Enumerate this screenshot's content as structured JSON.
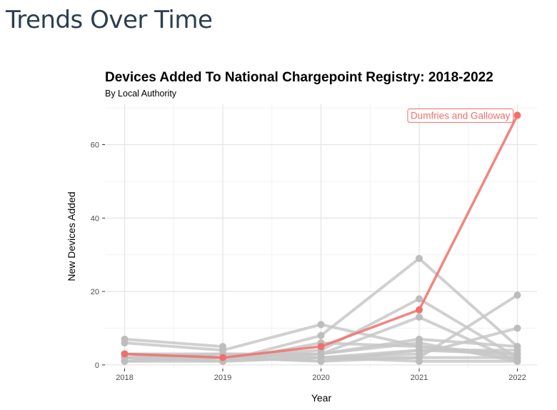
{
  "page": {
    "heading": "Trends Over Time"
  },
  "colors": {
    "highlight": "#f0706a",
    "background_series": "#c8c8c8",
    "background_points": "#bdbdbd"
  },
  "chart_data": {
    "type": "line",
    "title": "Devices Added To National Chargepoint Registry: 2018-2022",
    "subtitle": "By Local Authority",
    "xlabel": "Year",
    "ylabel": "New Devices Added",
    "x": [
      2018,
      2019,
      2020,
      2021,
      2022
    ],
    "xlim": [
      2017.8,
      2022.2
    ],
    "ylim": [
      -1,
      71
    ],
    "xticks": [
      2018,
      2019,
      2020,
      2021,
      2022
    ],
    "yticks": [
      0,
      20,
      40,
      60
    ],
    "grid": true,
    "highlight": {
      "name": "Dumfries and Galloway",
      "values": [
        3,
        2,
        5,
        15,
        68
      ]
    },
    "series": [
      {
        "values": [
          7,
          5,
          null,
          null,
          null
        ]
      },
      {
        "values": [
          6,
          4,
          11,
          5,
          3
        ]
      },
      {
        "values": [
          2,
          1,
          8,
          29,
          5
        ]
      },
      {
        "values": [
          3,
          2,
          4,
          18,
          2
        ]
      },
      {
        "values": [
          2,
          2,
          3,
          13,
          1
        ]
      },
      {
        "values": [
          2,
          1,
          2,
          2,
          19
        ]
      },
      {
        "values": [
          1,
          2,
          2,
          3,
          10
        ]
      },
      {
        "values": [
          3,
          3,
          3,
          7,
          5
        ]
      },
      {
        "values": [
          2,
          2,
          1,
          4,
          3
        ]
      },
      {
        "values": [
          1,
          1,
          6,
          5,
          2
        ]
      },
      {
        "values": [
          2,
          3,
          2,
          1,
          1
        ]
      },
      {
        "values": [
          1,
          2,
          3,
          6,
          1
        ]
      },
      {
        "values": [
          3,
          2,
          1,
          2,
          2
        ]
      },
      {
        "values": [
          2,
          1,
          2,
          4,
          4
        ]
      }
    ]
  }
}
